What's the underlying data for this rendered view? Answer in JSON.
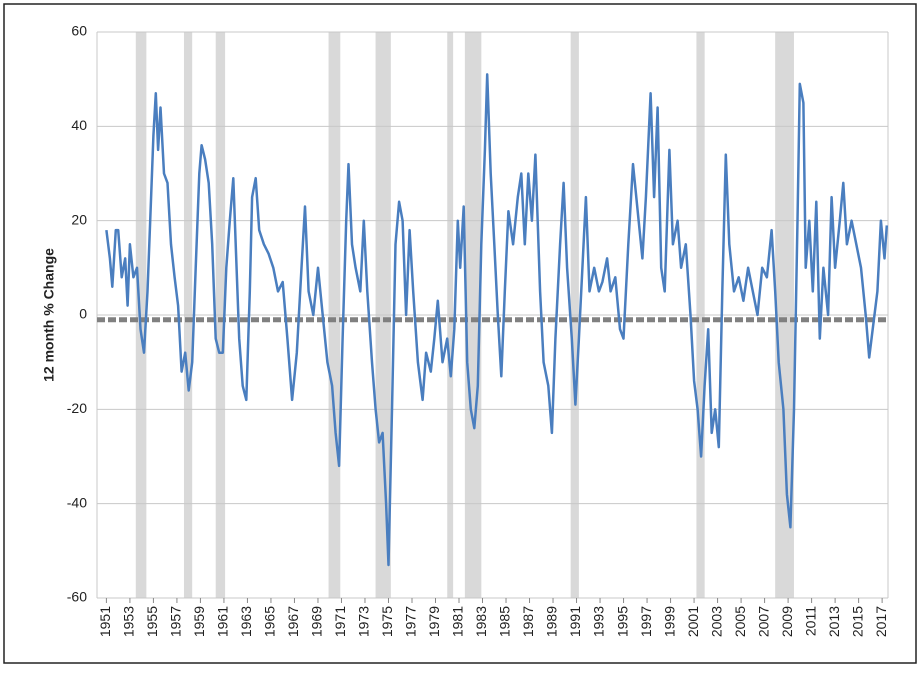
{
  "chart_data": {
    "type": "line",
    "y_label": "12 month % Change",
    "ylim": [
      -60,
      60
    ],
    "yticks": [
      -60,
      -40,
      -20,
      0,
      20,
      40,
      60
    ],
    "xlim": [
      1950.2,
      2017.5
    ],
    "xticks": [
      1951,
      1953,
      1955,
      1957,
      1959,
      1961,
      1963,
      1965,
      1967,
      1969,
      1971,
      1973,
      1975,
      1977,
      1979,
      1981,
      1983,
      1985,
      1987,
      1989,
      1991,
      1993,
      1995,
      1997,
      1999,
      2001,
      2003,
      2005,
      2007,
      2009,
      2011,
      2013,
      2015,
      2017
    ],
    "grid": true,
    "color": "#4a7ebf",
    "recession_color": "#d9d9d9",
    "hline": -1,
    "hline_color": "#808080",
    "recessions": [
      [
        1953.5,
        1954.4
      ],
      [
        1957.6,
        1958.3
      ],
      [
        1960.3,
        1961.1
      ],
      [
        1969.9,
        1970.9
      ],
      [
        1973.9,
        1975.2
      ],
      [
        1980.0,
        1980.5
      ],
      [
        1981.5,
        1982.9
      ],
      [
        1990.5,
        1991.2
      ],
      [
        2001.2,
        2001.9
      ],
      [
        2007.9,
        2009.5
      ]
    ],
    "x": [
      1951.0,
      1951.3,
      1951.5,
      1951.8,
      1952.0,
      1952.3,
      1952.6,
      1952.8,
      1953.0,
      1953.3,
      1953.6,
      1953.9,
      1954.2,
      1954.5,
      1954.8,
      1955.0,
      1955.2,
      1955.4,
      1955.6,
      1955.9,
      1956.2,
      1956.5,
      1956.8,
      1957.1,
      1957.4,
      1957.7,
      1958.0,
      1958.3,
      1958.6,
      1958.9,
      1959.1,
      1959.4,
      1959.7,
      1960.0,
      1960.3,
      1960.6,
      1960.9,
      1961.2,
      1961.5,
      1961.8,
      1962.0,
      1962.3,
      1962.6,
      1962.9,
      1963.2,
      1963.4,
      1963.7,
      1964.0,
      1964.4,
      1964.8,
      1965.2,
      1965.6,
      1966.0,
      1966.4,
      1966.8,
      1967.2,
      1967.6,
      1967.9,
      1968.2,
      1968.6,
      1969.0,
      1969.4,
      1969.8,
      1970.2,
      1970.5,
      1970.8,
      1971.1,
      1971.4,
      1971.6,
      1971.9,
      1972.2,
      1972.6,
      1972.9,
      1973.2,
      1973.6,
      1973.9,
      1974.2,
      1974.5,
      1974.8,
      1975.0,
      1975.3,
      1975.6,
      1975.9,
      1976.2,
      1976.5,
      1976.8,
      1977.1,
      1977.5,
      1977.9,
      1978.2,
      1978.6,
      1978.9,
      1979.2,
      1979.6,
      1980.0,
      1980.3,
      1980.6,
      1980.9,
      1981.1,
      1981.4,
      1981.7,
      1982.0,
      1982.3,
      1982.6,
      1982.9,
      1983.2,
      1983.4,
      1983.7,
      1984.0,
      1984.3,
      1984.6,
      1984.9,
      1985.2,
      1985.6,
      1986.0,
      1986.3,
      1986.6,
      1986.9,
      1987.2,
      1987.5,
      1987.9,
      1988.2,
      1988.6,
      1988.9,
      1989.2,
      1989.6,
      1989.9,
      1990.2,
      1990.6,
      1990.9,
      1991.2,
      1991.5,
      1991.8,
      1992.1,
      1992.5,
      1992.9,
      1993.2,
      1993.6,
      1993.9,
      1994.3,
      1994.7,
      1995.0,
      1995.4,
      1995.8,
      1996.2,
      1996.6,
      1996.9,
      1997.3,
      1997.6,
      1997.9,
      1998.2,
      1998.5,
      1998.9,
      1999.2,
      1999.6,
      1999.9,
      2000.3,
      2000.7,
      2001.0,
      2001.3,
      2001.6,
      2001.9,
      2002.2,
      2002.5,
      2002.8,
      2003.1,
      2003.4,
      2003.7,
      2004.0,
      2004.4,
      2004.8,
      2005.2,
      2005.6,
      2006.0,
      2006.4,
      2006.8,
      2007.2,
      2007.6,
      2007.9,
      2008.2,
      2008.6,
      2008.9,
      2009.2,
      2009.5,
      2009.8,
      2010.0,
      2010.3,
      2010.5,
      2010.8,
      2011.1,
      2011.4,
      2011.7,
      2012.0,
      2012.4,
      2012.7,
      2013.0,
      2013.4,
      2013.7,
      2014.0,
      2014.4,
      2014.8,
      2015.2,
      2015.6,
      2015.9,
      2016.2,
      2016.6,
      2016.9,
      2017.2,
      2017.4
    ],
    "values": [
      18,
      12,
      6,
      18,
      18,
      8,
      12,
      2,
      15,
      8,
      10,
      -3,
      -8,
      5,
      25,
      38,
      47,
      35,
      44,
      30,
      28,
      15,
      8,
      2,
      -12,
      -8,
      -16,
      -10,
      10,
      30,
      36,
      33,
      28,
      15,
      -5,
      -8,
      -8,
      10,
      20,
      29,
      15,
      -5,
      -15,
      -18,
      5,
      25,
      29,
      18,
      15,
      13,
      10,
      5,
      7,
      -5,
      -18,
      -8,
      10,
      23,
      5,
      0,
      10,
      0,
      -10,
      -15,
      -25,
      -32,
      -5,
      20,
      32,
      15,
      10,
      5,
      20,
      5,
      -10,
      -20,
      -27,
      -25,
      -40,
      -53,
      -20,
      15,
      24,
      20,
      0,
      18,
      5,
      -10,
      -18,
      -8,
      -12,
      -5,
      3,
      -10,
      -5,
      -13,
      -3,
      20,
      10,
      23,
      -10,
      -20,
      -24,
      -15,
      15,
      35,
      51,
      30,
      15,
      0,
      -13,
      5,
      22,
      15,
      25,
      30,
      15,
      30,
      20,
      34,
      5,
      -10,
      -15,
      -25,
      -5,
      15,
      28,
      10,
      -5,
      -19,
      -5,
      10,
      25,
      5,
      10,
      5,
      7,
      12,
      5,
      8,
      -3,
      -5,
      15,
      32,
      22,
      12,
      25,
      47,
      25,
      44,
      10,
      5,
      35,
      15,
      20,
      10,
      15,
      0,
      -14,
      -20,
      -30,
      -15,
      -3,
      -25,
      -20,
      -28,
      5,
      34,
      15,
      5,
      8,
      3,
      10,
      5,
      0,
      10,
      8,
      18,
      5,
      -10,
      -20,
      -38,
      -45,
      -20,
      20,
      49,
      45,
      10,
      20,
      5,
      24,
      -5,
      10,
      0,
      25,
      10,
      20,
      28,
      15,
      20,
      15,
      10,
      0,
      -9,
      -3,
      5,
      20,
      12,
      19
    ]
  }
}
